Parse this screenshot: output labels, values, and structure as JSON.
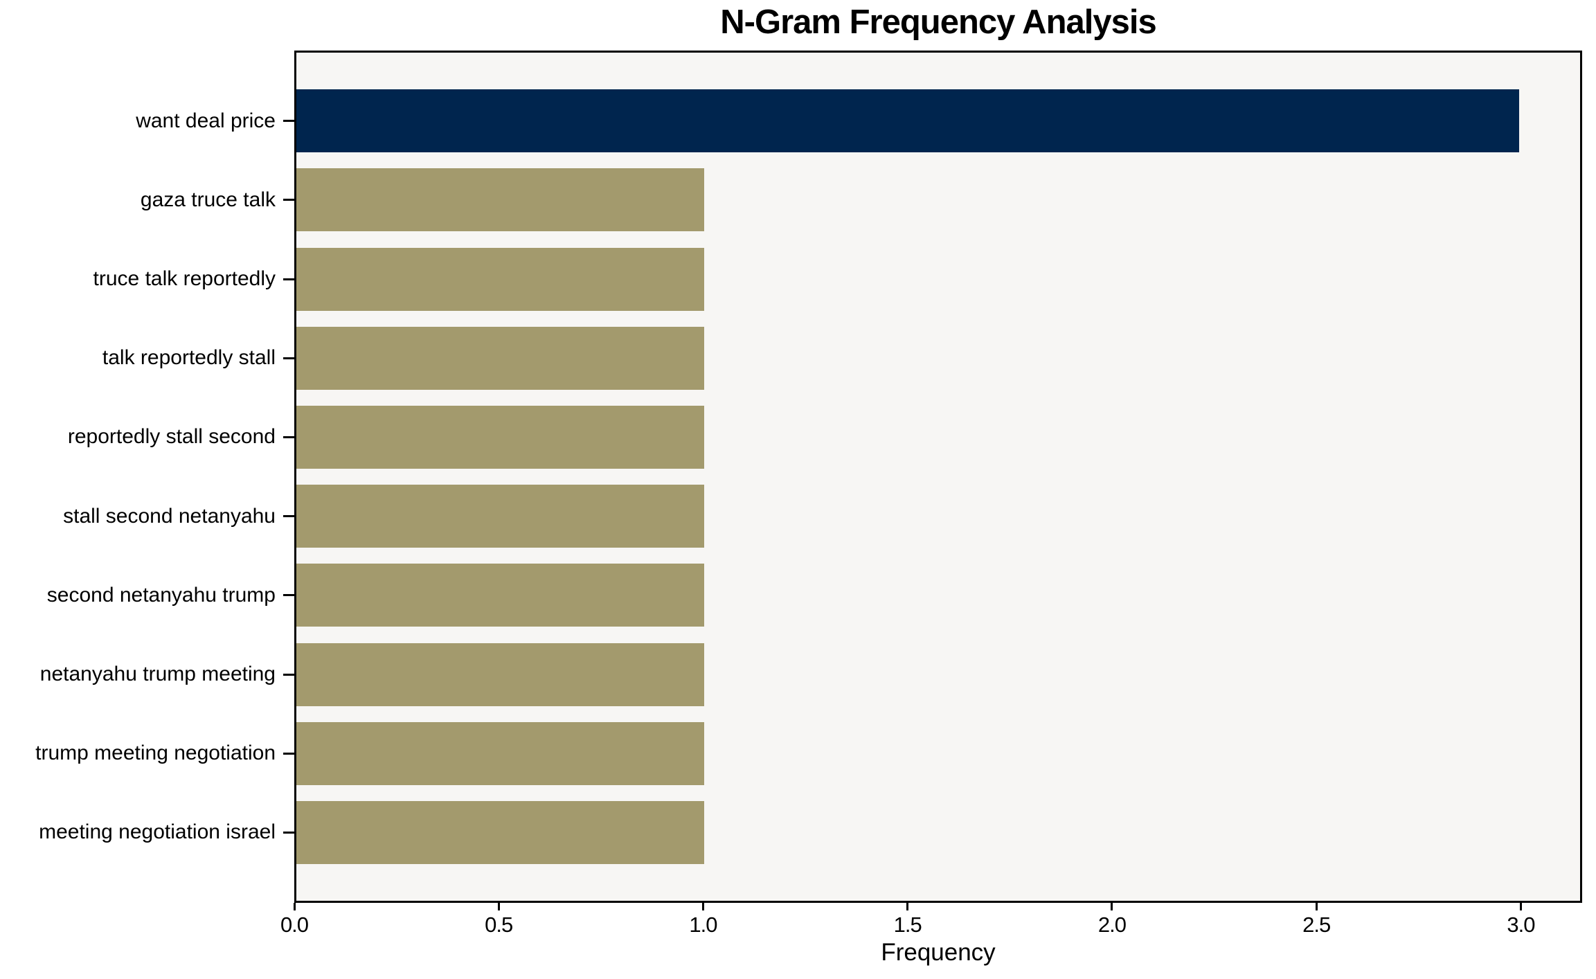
{
  "chart_data": {
    "type": "bar",
    "orientation": "horizontal",
    "title": "N-Gram Frequency Analysis",
    "xlabel": "Frequency",
    "ylabel": "",
    "categories": [
      "want deal price",
      "gaza truce talk",
      "truce talk reportedly",
      "talk reportedly stall",
      "reportedly stall second",
      "stall second netanyahu",
      "second netanyahu trump",
      "netanyahu trump meeting",
      "trump meeting negotiation",
      "meeting negotiation israel"
    ],
    "values": [
      3,
      1,
      1,
      1,
      1,
      1,
      1,
      1,
      1,
      1
    ],
    "bar_colors": [
      "#00254E",
      "#A39A6D",
      "#A39A6D",
      "#A39A6D",
      "#A39A6D",
      "#A39A6D",
      "#A39A6D",
      "#A39A6D",
      "#A39A6D",
      "#A39A6D"
    ],
    "xlim": [
      0,
      3.15
    ],
    "xtick_values": [
      0,
      0.5,
      1,
      1.5,
      2,
      2.5,
      3
    ],
    "xtick_labels": [
      "0.0",
      "0.5",
      "1.0",
      "1.5",
      "2.0",
      "2.5",
      "3.0"
    ],
    "grid": false,
    "legend": null,
    "colors": {
      "bar_highlight": "#00254E",
      "bar_default": "#A39A6D",
      "plot_background": "#F7F6F4",
      "figure_background": "#FFFFFF",
      "spine": "#000000",
      "text": "#000000"
    }
  }
}
